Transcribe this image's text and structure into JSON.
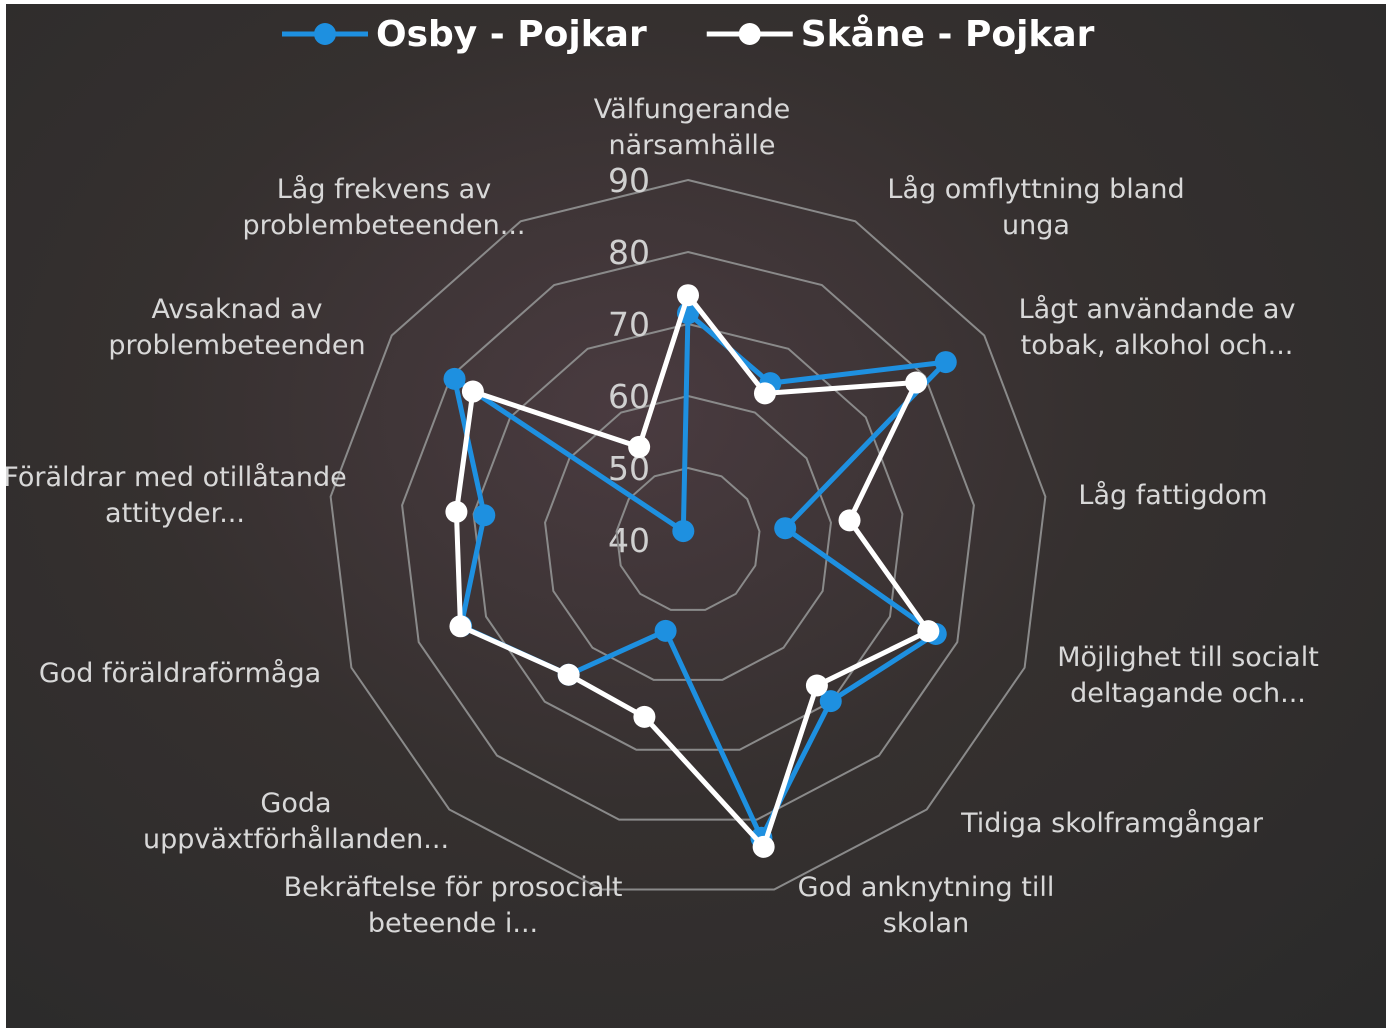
{
  "chart_data": {
    "type": "radar",
    "categories": [
      "Välfungerande närsamhälle",
      "Låg omflyttning bland unga",
      "Lågt användande av tobak, alkohol och...",
      "Låg fattigdom",
      "Möjlighet till socialt deltagande och...",
      "Tidiga skolframgångar",
      "God anknytning till skolan",
      "Bekräftelse för prosocialt beteende i...",
      "Goda uppväxtförhållanden...",
      "God föräldraförmåga",
      "Föräldrar med otillåtande attityder...",
      "Avsaknad av problembeteenden",
      "Låg frekvens av problembeteenden..."
    ],
    "series": [
      {
        "name": "Osby - Pojkar",
        "color": "#1e90e0",
        "values": [
          71.5,
          64.6,
          83.5,
          53.6,
          76.8,
          69.9,
          82.6,
          53,
          65,
          73.7,
          68.5,
          79.4,
          41.4
        ]
      },
      {
        "name": "Skåne - Pojkar",
        "color": "#ffffff",
        "values": [
          74,
          63,
          78.5,
          62.6,
          75.7,
          67,
          83.9,
          65.3,
          65,
          73.8,
          72.4,
          76.3,
          54.6
        ]
      }
    ],
    "rlim": [
      40,
      90
    ],
    "rticks": [
      40,
      50,
      60,
      70,
      80,
      90
    ],
    "legend": "top"
  }
}
